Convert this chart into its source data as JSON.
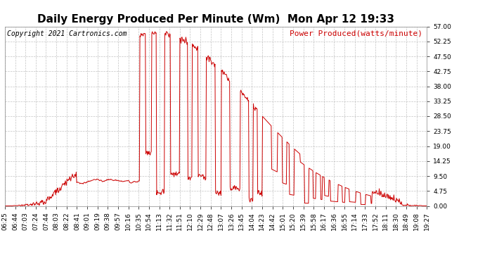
{
  "title": "Daily Energy Produced Per Minute (Wm)  Mon Apr 12 19:33",
  "copyright_text": "Copyright 2021 Cartronics.com",
  "legend_label": "Power Produced(watts/minute)",
  "line_color": "#cc0000",
  "bg_color": "#ffffff",
  "grid_color": "#aaaaaa",
  "ymin": 0.0,
  "ymax": 57.0,
  "yticks": [
    0.0,
    4.75,
    9.5,
    14.25,
    19.0,
    23.75,
    28.5,
    33.25,
    38.0,
    42.75,
    47.5,
    52.25,
    57.0
  ],
  "xtick_labels": [
    "06:25",
    "06:44",
    "07:03",
    "07:24",
    "07:44",
    "08:03",
    "08:22",
    "08:41",
    "09:01",
    "09:19",
    "09:38",
    "09:57",
    "10:16",
    "10:35",
    "10:54",
    "11:13",
    "11:32",
    "11:51",
    "12:10",
    "12:29",
    "12:48",
    "13:07",
    "13:26",
    "13:45",
    "14:04",
    "14:23",
    "14:42",
    "15:01",
    "15:20",
    "15:39",
    "15:58",
    "16:17",
    "16:36",
    "16:55",
    "17:14",
    "17:33",
    "17:52",
    "18:11",
    "18:30",
    "18:49",
    "19:08",
    "19:27"
  ],
  "title_fontsize": 11,
  "copyright_fontsize": 7,
  "legend_fontsize": 8,
  "tick_fontsize": 6.5
}
